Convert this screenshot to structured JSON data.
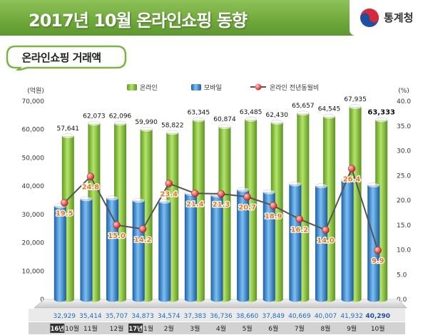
{
  "header": {
    "title": "2017년 10월 온라인쇼핑 동향",
    "logo_text": "통계청"
  },
  "section": {
    "label": "온라인쇼핑 거래액"
  },
  "chart_data": {
    "type": "bar",
    "categories": [
      "10월",
      "11월",
      "12월",
      "1월",
      "2월",
      "3월",
      "4월",
      "5월",
      "6월",
      "7월",
      "8월",
      "9월",
      "10월"
    ],
    "year_tags": [
      {
        "index": 0,
        "text": "16년"
      },
      {
        "index": 3,
        "text": "17년"
      }
    ],
    "series": [
      {
        "name": "온라인",
        "axis": "left",
        "color": "#8cc63f",
        "values": [
          57641,
          62073,
          62096,
          59990,
          58822,
          63345,
          60874,
          63485,
          62430,
          65657,
          64545,
          67935,
          63333
        ]
      },
      {
        "name": "모바일",
        "axis": "left",
        "color": "#3d8fd6",
        "values": [
          32929,
          35414,
          35707,
          34873,
          34574,
          37383,
          36736,
          38660,
          37849,
          40669,
          40007,
          41932,
          40290
        ]
      },
      {
        "name": "온라인 전년동월비",
        "axis": "right",
        "type": "line",
        "color": "#e84a4a",
        "values": [
          19.5,
          24.8,
          15.0,
          14.2,
          23.4,
          21.4,
          21.3,
          20.7,
          18.9,
          16.2,
          14.0,
          26.4,
          9.9
        ]
      }
    ],
    "y_left": {
      "unit": "(억원)",
      "min": 0,
      "max": 70000,
      "step": 10000
    },
    "y_right": {
      "unit": "(%)",
      "min": 0,
      "max": 40,
      "step": 5
    },
    "bold_last": true
  }
}
